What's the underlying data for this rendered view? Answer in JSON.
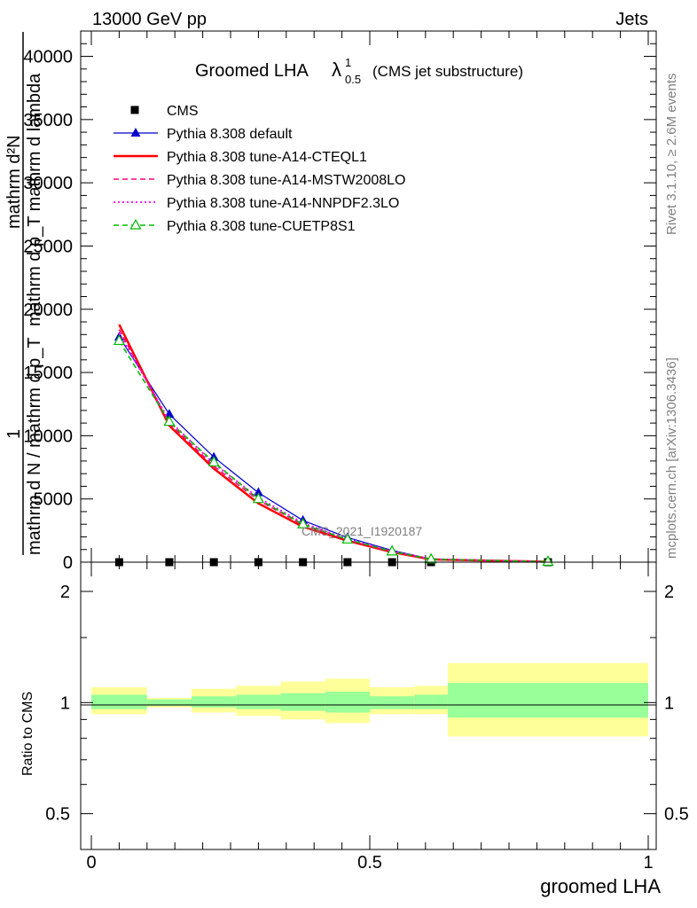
{
  "header": {
    "left": "13000 GeV pp",
    "right": "Jets"
  },
  "side_text": {
    "rivet": "Rivet 3.1.10, ≥ 2.6M events",
    "mcplots": "mcplots.cern.ch [arXiv:1306.3436]"
  },
  "chart_data": [
    {
      "type": "line",
      "title_main": "Groomed LHA",
      "title_lambda": "λ",
      "title_sup": "1",
      "title_sub": "0.5",
      "title_suffix": "(CMS jet substructure)",
      "ylabel_lines": [
        "mathrm d²N",
        "mathrm d p_T mathrm d lambda",
        "1",
        "mathrm d N / mathrm d p_T"
      ],
      "watermark": "CMS_2021_I1920187",
      "ylim": [
        0,
        42000
      ],
      "xlim": [
        0,
        1
      ],
      "y_ticks": [
        "0",
        "5000",
        "10000",
        "15000",
        "20000",
        "25000",
        "30000",
        "35000",
        "40000"
      ],
      "y_tick_values": [
        0,
        5000,
        10000,
        15000,
        20000,
        25000,
        30000,
        35000,
        40000
      ],
      "x_edges": [
        0,
        0.1,
        0.18,
        0.26,
        0.34,
        0.42,
        0.5,
        0.58,
        0.64,
        1.0
      ],
      "x": [
        0.05,
        0.14,
        0.22,
        0.3,
        0.38,
        0.46,
        0.54,
        0.61,
        0.82
      ],
      "series": [
        {
          "name": "CMS",
          "color": "#000000",
          "style": "points",
          "marker": "square",
          "values": [
            0,
            0,
            0,
            0,
            0,
            0,
            0,
            0,
            0
          ]
        },
        {
          "name": "Pythia 8.308 default",
          "color": "#0000cc",
          "style": "solid-thin",
          "marker": "triangle",
          "values": [
            17800,
            11700,
            8300,
            5500,
            3300,
            1950,
            930,
            250,
            40
          ]
        },
        {
          "name": "Pythia 8.308 tune-A14-CTEQL1",
          "color": "#ff0000",
          "style": "solid-thick",
          "marker": "",
          "values": [
            18800,
            10800,
            7400,
            4650,
            2800,
            1700,
            800,
            220,
            35
          ]
        },
        {
          "name": "Pythia 8.308 tune-A14-MSTW2008LO",
          "color": "#ff0080",
          "style": "dashed",
          "marker": "",
          "values": [
            18400,
            11000,
            7600,
            4900,
            2950,
            1750,
            830,
            230,
            36
          ]
        },
        {
          "name": "Pythia 8.308 tune-A14-NNPDF2.3LO",
          "color": "#ff00ff",
          "style": "dotted",
          "marker": "",
          "values": [
            18100,
            11200,
            7800,
            5100,
            3100,
            1820,
            870,
            240,
            38
          ]
        },
        {
          "name": "Pythia 8.308 tune-CUETP8S1",
          "color": "#00bb00",
          "style": "dashed",
          "marker": "open-triangle",
          "values": [
            17500,
            11100,
            7900,
            5000,
            3000,
            1800,
            850,
            230,
            37
          ]
        }
      ]
    },
    {
      "type": "area",
      "ylabel": "Ratio to CMS",
      "ylim": [
        0.4,
        2.4
      ],
      "log_scale": true,
      "y_ticks_left": [
        "0.5",
        "1",
        "2"
      ],
      "y_ticks_right": [
        "0.5",
        "1",
        "2"
      ],
      "y_tick_values": [
        0.5,
        1,
        2
      ],
      "x_ticks": [
        "0",
        "0.5",
        "1"
      ],
      "x_tick_values": [
        0,
        0.5,
        1
      ],
      "xlabel": "groomed LHA",
      "x_edges": [
        0,
        0.1,
        0.18,
        0.26,
        0.34,
        0.42,
        0.5,
        0.58,
        0.64,
        1.0
      ],
      "bands": {
        "inner_color": "#99ff99",
        "outer_color": "#ffff99",
        "inner_low": [
          0.96,
          0.98,
          0.97,
          0.96,
          0.95,
          0.94,
          0.96,
          0.96,
          0.91
        ],
        "inner_high": [
          1.05,
          1.02,
          1.04,
          1.05,
          1.06,
          1.07,
          1.04,
          1.05,
          1.13
        ],
        "outer_low": [
          0.93,
          0.97,
          0.94,
          0.92,
          0.9,
          0.88,
          0.93,
          0.93,
          0.81
        ],
        "outer_high": [
          1.1,
          1.03,
          1.09,
          1.11,
          1.14,
          1.16,
          1.1,
          1.11,
          1.28
        ]
      }
    }
  ]
}
